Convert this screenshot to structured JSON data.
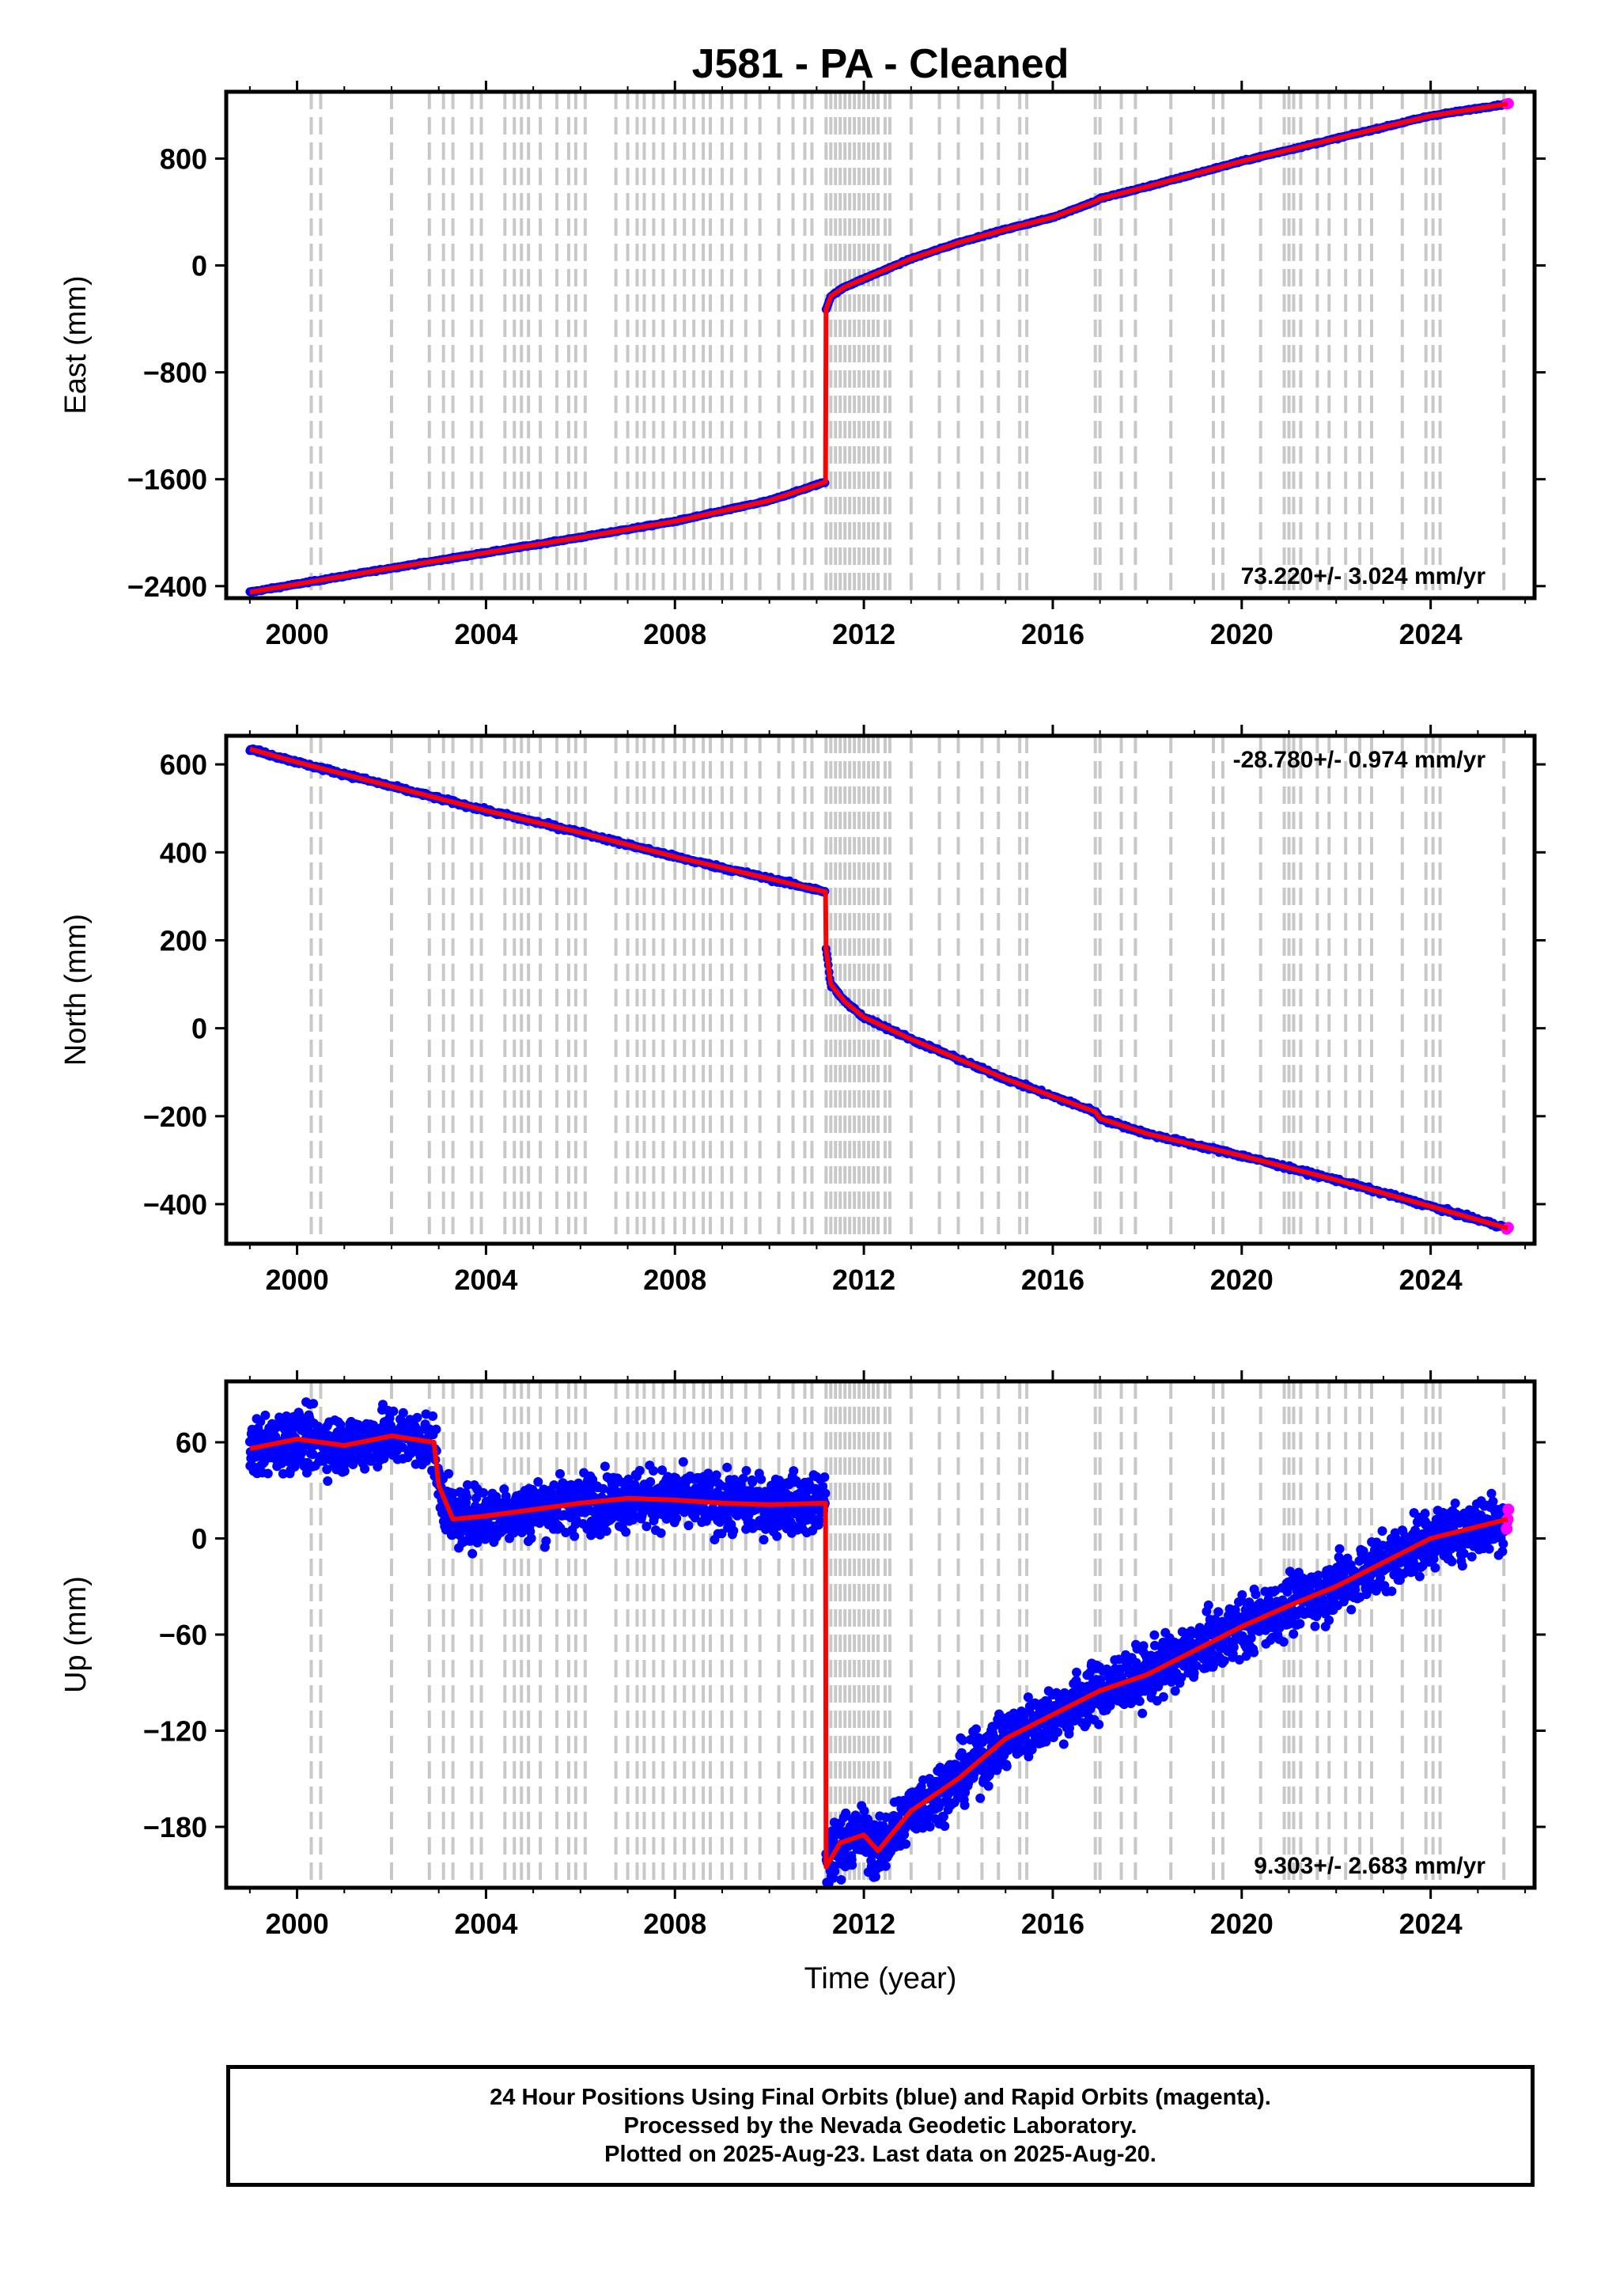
{
  "title": "J581  - PA - Cleaned",
  "footer": {
    "line1": "24 Hour Positions Using Final Orbits (blue) and Rapid Orbits (magenta).",
    "line2": "Processed by the Nevada Geodetic Laboratory.",
    "line3": "Plotted on 2025-Aug-23. Last data on 2025-Aug-20."
  },
  "colors": {
    "final_orbits": "#0000ff",
    "rapid_orbits": "#ff00ff",
    "model": "#ff0000",
    "event_lines": "#c8c8c8"
  },
  "event_lines_years": [
    2000.3,
    2000.5,
    2002.0,
    2002.8,
    2003.1,
    2003.3,
    2003.7,
    2003.9,
    2004.4,
    2004.6,
    2004.75,
    2004.9,
    2005.15,
    2005.5,
    2005.75,
    2005.9,
    2006.1,
    2006.75,
    2007.0,
    2007.2,
    2007.35,
    2007.55,
    2007.75,
    2008.0,
    2008.2,
    2008.4,
    2008.6,
    2008.75,
    2009.0,
    2009.2,
    2009.5,
    2009.8,
    2010.2,
    2010.5,
    2010.75,
    2010.9,
    2011.2,
    2011.3,
    2011.4,
    2011.5,
    2011.6,
    2011.7,
    2011.8,
    2011.9,
    2012.0,
    2012.1,
    2012.2,
    2012.3,
    2012.45,
    2012.55,
    2013.0,
    2013.6,
    2014.0,
    2014.5,
    2014.85,
    2015.3,
    2015.45,
    2016.9,
    2017.0,
    2017.45,
    2017.75,
    2018.5,
    2019.4,
    2019.6,
    2020.4,
    2020.9,
    2021.0,
    2021.1,
    2021.25,
    2021.6,
    2021.85,
    2022.2,
    2022.5,
    2022.75,
    2023.4,
    2023.9,
    2024.05,
    2024.2,
    2025.55
  ],
  "chart_data": [
    {
      "type": "scatter",
      "panel": "east",
      "ylabel": "East (mm)",
      "xlim": [
        1998.5,
        2026.2
      ],
      "ylim": [
        -2490,
        1300
      ],
      "xticks": [
        2000,
        2004,
        2008,
        2012,
        2016,
        2020,
        2024
      ],
      "xtick_labels": [
        "2000",
        "2004",
        "2008",
        "2012",
        "2016",
        "2020",
        "2024"
      ],
      "yticks": [
        -2400,
        -1600,
        -800,
        0,
        800
      ],
      "ytick_labels": [
        "−2400",
        "−1600",
        "−800",
        "0",
        "800"
      ],
      "grid": false,
      "annotation": "73.220+/- 3.024 mm/yr",
      "series": [
        {
          "x": [
            1999.0,
            2000.0,
            2002.0,
            2004.0,
            2006.0,
            2008.0,
            2010.0,
            2011.19
          ],
          "values": [
            -2445,
            -2385,
            -2265,
            -2150,
            -2035,
            -1915,
            -1760,
            -1620
          ]
        },
        {
          "x": [
            2011.2,
            2011.3,
            2011.6,
            2012.0,
            2013.0,
            2014.0,
            2015.0,
            2016.0,
            2016.9,
            2017.0,
            2018.0,
            2020.0,
            2022.0,
            2024.0,
            2025.63
          ],
          "values": [
            -330,
            -230,
            -160,
            -100,
            50,
            170,
            270,
            360,
            480,
            500,
            590,
            780,
            950,
            1120,
            1210
          ]
        }
      ]
    },
    {
      "type": "scatter",
      "panel": "north",
      "ylabel": "North (mm)",
      "xlim": [
        1998.5,
        2026.2
      ],
      "ylim": [
        -490,
        665
      ],
      "xticks": [
        2000,
        2004,
        2008,
        2012,
        2016,
        2020,
        2024
      ],
      "xtick_labels": [
        "2000",
        "2004",
        "2008",
        "2012",
        "2016",
        "2020",
        "2024"
      ],
      "yticks": [
        -400,
        -200,
        0,
        200,
        400,
        600
      ],
      "ytick_labels": [
        "−400",
        "−200",
        "0",
        "200",
        "400",
        "600"
      ],
      "grid": false,
      "annotation": "-28.780+/- 0.974 mm/yr",
      "series": [
        {
          "x": [
            1999.0,
            2000.0,
            2002.0,
            2004.0,
            2006.0,
            2008.0,
            2010.0,
            2011.19
          ],
          "values": [
            635,
            605,
            550,
            495,
            445,
            390,
            340,
            310
          ]
        },
        {
          "x": [
            2011.2,
            2011.3,
            2011.6,
            2012.0,
            2013.0,
            2014.0,
            2015.0,
            2016.0,
            2016.9,
            2017.0,
            2018.0,
            2020.0,
            2022.0,
            2024.0,
            2025.63
          ],
          "values": [
            180,
            100,
            60,
            25,
            -25,
            -70,
            -115,
            -155,
            -190,
            -205,
            -240,
            -290,
            -345,
            -405,
            -455
          ]
        }
      ]
    },
    {
      "type": "scatter",
      "panel": "up",
      "ylabel": "Up (mm)",
      "xlabel": "Time (year)",
      "xlim": [
        1998.5,
        2026.2
      ],
      "ylim": [
        -218,
        98
      ],
      "xticks": [
        2000,
        2004,
        2008,
        2012,
        2016,
        2020,
        2024
      ],
      "xtick_labels": [
        "2000",
        "2004",
        "2008",
        "2012",
        "2016",
        "2020",
        "2024"
      ],
      "yticks": [
        -180,
        -120,
        -60,
        0,
        60
      ],
      "ytick_labels": [
        "−180",
        "−120",
        "−60",
        "0",
        "60"
      ],
      "grid": false,
      "annotation": "9.303+/- 2.683 mm/yr",
      "series": [
        {
          "x": [
            1999.0,
            2000.0,
            2001.0,
            2002.0,
            2002.9,
            2003.0,
            2003.3,
            2004.0,
            2005.0,
            2006.0,
            2007.0,
            2008.0,
            2009.0,
            2010.0,
            2011.19
          ],
          "values": [
            56,
            62,
            58,
            64,
            60,
            33,
            12,
            14,
            18,
            22,
            25,
            24,
            22,
            21,
            22
          ]
        },
        {
          "x": [
            2011.2,
            2011.5,
            2012.0,
            2012.3,
            2013.0,
            2014.0,
            2015.0,
            2016.0,
            2017.0,
            2018.0,
            2019.0,
            2020.0,
            2021.0,
            2022.0,
            2023.0,
            2024.0,
            2025.63
          ],
          "values": [
            -205,
            -190,
            -185,
            -195,
            -170,
            -150,
            -125,
            -110,
            -95,
            -85,
            -70,
            -55,
            -42,
            -30,
            -15,
            0,
            12
          ]
        }
      ]
    }
  ]
}
